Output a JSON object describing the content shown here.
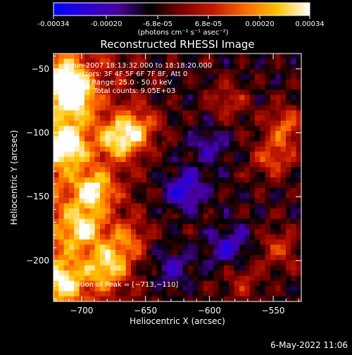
{
  "colors": {
    "background": "#000000",
    "text": "#ffffff",
    "colormap": [
      "#0000ff",
      "#2c00d8",
      "#4a00a0",
      "#000000",
      "#7a0000",
      "#c41800",
      "#ff6a00",
      "#ffc400",
      "#ffffff"
    ]
  },
  "colorbar": {
    "ticks": [
      "-0.00034",
      "-0.00020",
      "-6.8e-05",
      "6.8e-05",
      "0.00020",
      "0.00034"
    ],
    "unit_label": "(photons cm⁻² s⁻¹ asec⁻²)",
    "range": [
      -0.00034,
      0.00034
    ]
  },
  "chart_data": {
    "type": "heatmap",
    "title": "Reconstructed RHESSI Image",
    "xlabel": "Heliocentric X (arcsec)",
    "ylabel": "Heliocentric Y (arcsec)",
    "xlim": [
      -722,
      -528
    ],
    "ylim": [
      -232,
      -38
    ],
    "xticks": [
      -700,
      -650,
      -600,
      -550
    ],
    "yticks": [
      -50,
      -100,
      -150,
      -200
    ],
    "xtick_labels": [
      "−700",
      "−650",
      "−600",
      "−550"
    ],
    "ytick_labels": [
      "−50",
      "−100",
      "−150",
      "−200"
    ],
    "annotations": [
      "4-Jun-2007 18:13:32.000 to 18:18:20.000",
      "Detectors: 3F 4F 5F 6F 7F 8F, Att 0",
      "Energy Range: 25.0 - 50.0 keV",
      "Clean    Total counts: 9.05E+03"
    ],
    "peak_label": "Position of Peak = [−713,−110]",
    "peak_position": [
      -713,
      -110
    ],
    "total_counts": 9050,
    "energy_range_kev": [
      25.0,
      50.0
    ],
    "bright_regions": [
      {
        "x": -713,
        "y": -110,
        "value": 1.0
      },
      {
        "x": -712,
        "y": -60,
        "value": 0.8
      },
      {
        "x": -705,
        "y": -75,
        "value": 0.75
      },
      {
        "x": -670,
        "y": -105,
        "value": 0.85
      },
      {
        "x": -655,
        "y": -95,
        "value": 0.6
      },
      {
        "x": -690,
        "y": -145,
        "value": 0.8
      },
      {
        "x": -700,
        "y": -175,
        "value": 0.7
      },
      {
        "x": -680,
        "y": -205,
        "value": 0.75
      },
      {
        "x": -715,
        "y": -215,
        "value": 0.65
      },
      {
        "x": -665,
        "y": -185,
        "value": 0.5
      },
      {
        "x": -550,
        "y": -120,
        "value": 0.55
      },
      {
        "x": -540,
        "y": -95,
        "value": 0.6
      },
      {
        "x": -585,
        "y": -75,
        "value": 0.4
      },
      {
        "x": -545,
        "y": -190,
        "value": 0.45
      },
      {
        "x": -575,
        "y": -215,
        "value": 0.35
      }
    ],
    "dark_regions": [
      {
        "x": -620,
        "y": -145,
        "value": -0.6
      },
      {
        "x": -585,
        "y": -190,
        "value": -0.5
      },
      {
        "x": -630,
        "y": -205,
        "value": -0.4
      },
      {
        "x": -600,
        "y": -110,
        "value": -0.35
      }
    ]
  },
  "footer_timestamp": "6-May-2022 11:06"
}
